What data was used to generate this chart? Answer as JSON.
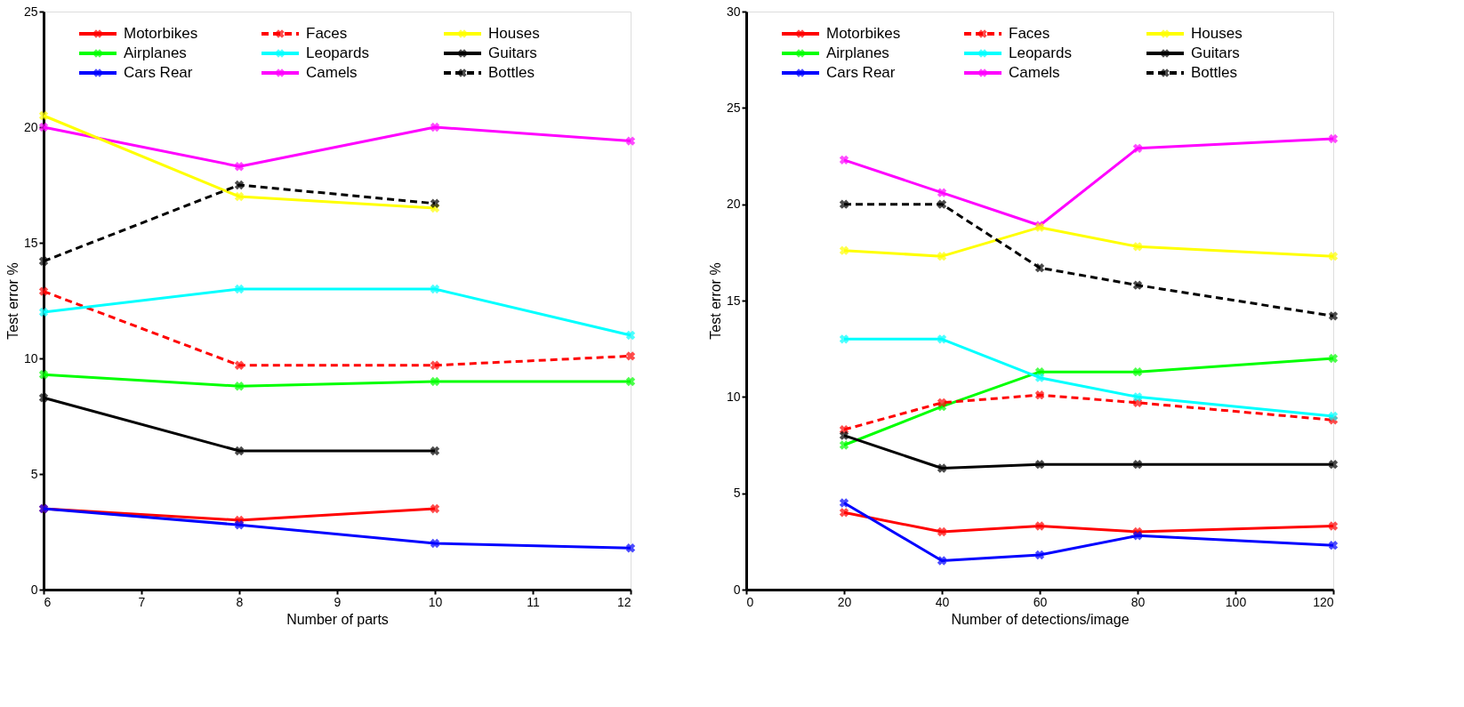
{
  "chart_data": [
    {
      "type": "line",
      "xlabel": "Number of parts",
      "ylabel": "Test error %",
      "x": [
        6,
        8,
        10,
        12
      ],
      "xlim": [
        6,
        12
      ],
      "xticks": [
        6,
        7,
        8,
        9,
        10,
        11,
        12
      ],
      "ylim": [
        0,
        25
      ],
      "yticks": [
        0,
        5,
        10,
        15,
        20,
        25
      ],
      "grid": false,
      "legend": "top left",
      "marker": "cross",
      "series": [
        {
          "name": "Motorbikes",
          "color": "#ff0000",
          "line_style": "solid",
          "values": [
            3.5,
            3.0,
            3.5,
            null
          ]
        },
        {
          "name": "Airplanes",
          "color": "#00ff00",
          "line_style": "solid",
          "values": [
            9.3,
            8.8,
            9.0,
            9.0
          ]
        },
        {
          "name": "Cars Rear",
          "color": "#0000ff",
          "line_style": "solid",
          "values": [
            3.5,
            2.8,
            2.0,
            1.8
          ]
        },
        {
          "name": "Faces",
          "color": "#ff0000",
          "line_style": "dashed",
          "values": [
            12.9,
            9.7,
            9.7,
            10.1
          ]
        },
        {
          "name": "Leopards",
          "color": "#00ffff",
          "line_style": "solid",
          "values": [
            12.0,
            13.0,
            13.0,
            11.0
          ]
        },
        {
          "name": "Camels",
          "color": "#ff00ff",
          "line_style": "solid",
          "values": [
            20.0,
            18.3,
            20.0,
            19.4
          ]
        },
        {
          "name": "Houses",
          "color": "#ffff00",
          "line_style": "solid",
          "values": [
            20.5,
            17.0,
            16.5,
            null
          ]
        },
        {
          "name": "Guitars",
          "color": "#000000",
          "line_style": "solid",
          "values": [
            8.3,
            6.0,
            6.0,
            null
          ]
        },
        {
          "name": "Bottles",
          "color": "#000000",
          "line_style": "dashed",
          "values": [
            14.2,
            17.5,
            16.7,
            null
          ]
        }
      ]
    },
    {
      "type": "line",
      "xlabel": "Number of detections/image",
      "ylabel": "Test error %",
      "x": [
        20,
        40,
        60,
        80,
        120
      ],
      "xlim": [
        0,
        120
      ],
      "xticks": [
        0,
        20,
        40,
        60,
        80,
        100,
        120
      ],
      "ylim": [
        0,
        30
      ],
      "yticks": [
        0,
        5,
        10,
        15,
        20,
        25,
        30
      ],
      "grid": false,
      "legend": "top left",
      "marker": "cross",
      "series": [
        {
          "name": "Motorbikes",
          "color": "#ff0000",
          "line_style": "solid",
          "values": [
            4.0,
            3.0,
            3.3,
            3.0,
            3.3
          ]
        },
        {
          "name": "Airplanes",
          "color": "#00ff00",
          "line_style": "solid",
          "values": [
            7.5,
            9.5,
            11.3,
            11.3,
            12.0
          ]
        },
        {
          "name": "Cars Rear",
          "color": "#0000ff",
          "line_style": "solid",
          "values": [
            4.5,
            1.5,
            1.8,
            2.8,
            2.3
          ]
        },
        {
          "name": "Faces",
          "color": "#ff0000",
          "line_style": "dashed",
          "values": [
            8.3,
            9.7,
            10.1,
            9.7,
            8.8
          ]
        },
        {
          "name": "Leopards",
          "color": "#00ffff",
          "line_style": "solid",
          "values": [
            13.0,
            13.0,
            11.0,
            10.0,
            9.0
          ]
        },
        {
          "name": "Camels",
          "color": "#ff00ff",
          "line_style": "solid",
          "values": [
            22.3,
            20.6,
            18.9,
            22.9,
            23.4
          ]
        },
        {
          "name": "Houses",
          "color": "#ffff00",
          "line_style": "solid",
          "values": [
            17.6,
            17.3,
            18.8,
            17.8,
            17.3
          ]
        },
        {
          "name": "Guitars",
          "color": "#000000",
          "line_style": "solid",
          "values": [
            8.0,
            6.3,
            6.5,
            6.5,
            6.5
          ]
        },
        {
          "name": "Bottles",
          "color": "#000000",
          "line_style": "dashed",
          "values": [
            20.0,
            20.0,
            16.7,
            15.8,
            14.2
          ]
        }
      ]
    }
  ]
}
